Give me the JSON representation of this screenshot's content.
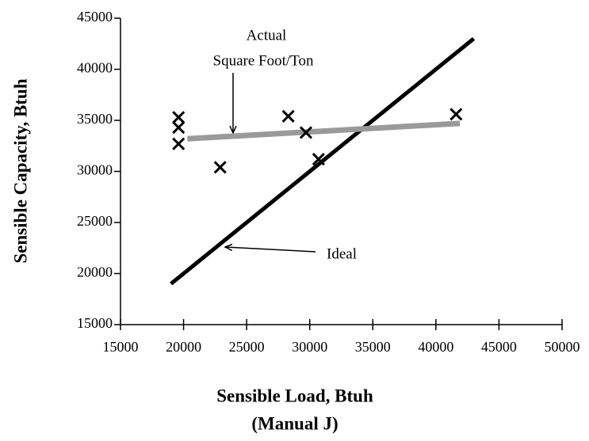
{
  "chart_data": {
    "type": "scatter",
    "xlabel": [
      "Sensible Load, Btuh",
      "(Manual J)"
    ],
    "ylabel": "Sensible Capacity, Btuh",
    "xlim": [
      15000,
      50000
    ],
    "ylim": [
      15000,
      45000
    ],
    "xticks": [
      15000,
      20000,
      25000,
      30000,
      35000,
      40000,
      45000,
      50000
    ],
    "yticks": [
      15000,
      20000,
      25000,
      30000,
      35000,
      40000,
      45000
    ],
    "grid": false,
    "series": [
      {
        "type": "line",
        "color": "#000000",
        "x": [
          19000,
          43000
        ],
        "y": [
          19000,
          43000
        ]
      },
      {
        "type": "line",
        "color": "#9a9a9a",
        "x": [
          20300,
          41900
        ],
        "y": [
          33200,
          34700
        ]
      },
      {
        "type": "scatter",
        "color": "#000000",
        "x": [
          19600,
          19600,
          19600,
          22900,
          28300,
          29700,
          30700,
          41600
        ],
        "y": [
          35300,
          34300,
          32700,
          30400,
          35400,
          33800,
          31200,
          35600
        ]
      }
    ],
    "annotations": {
      "actual": [
        "Actual",
        "Square Foot/Ton"
      ],
      "ideal": "Ideal"
    }
  }
}
